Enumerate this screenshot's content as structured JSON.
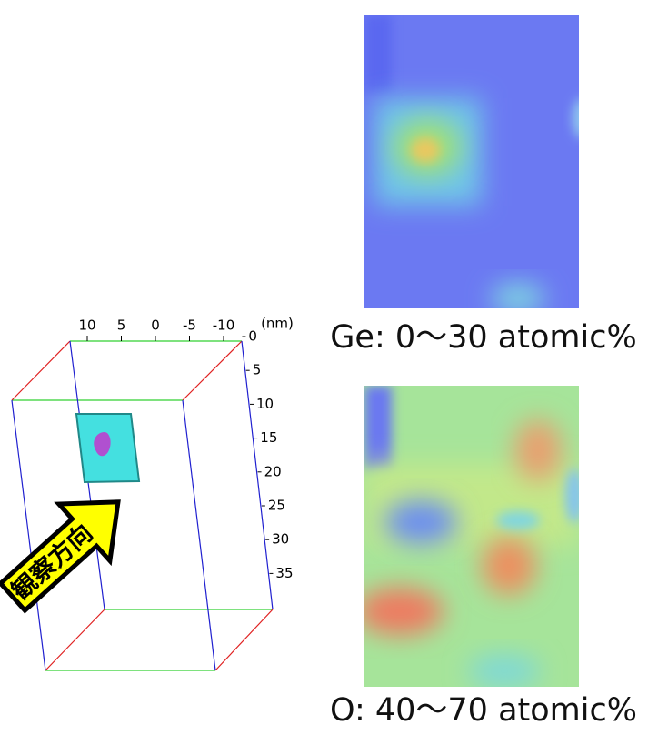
{
  "figure": {
    "box": {
      "lateral_axis": {
        "ticks": [
          "10",
          "5",
          "0",
          "-5",
          "-10"
        ],
        "unit": "(nm)"
      },
      "depth_axis": {
        "ticks": [
          "0",
          "5",
          "10",
          "15",
          "20",
          "25",
          "30",
          "35"
        ]
      },
      "arrow_label": "観察方向"
    },
    "maps": [
      {
        "caption": "Ge: 0〜30 atomic%"
      },
      {
        "caption": "O: 40〜70 atomic%"
      }
    ]
  }
}
